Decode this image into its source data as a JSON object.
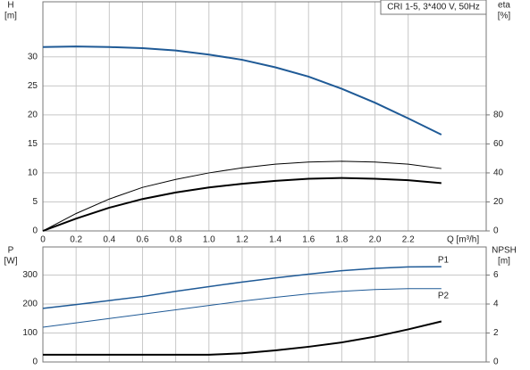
{
  "chart_data": [
    {
      "type": "line",
      "title": "CRI 1-5, 3*400 V, 50Hz",
      "ylabel": [
        "H",
        "[m]"
      ],
      "y2label": [
        "eta",
        "[%]"
      ],
      "xlabel": "Q [m³/h]",
      "x": [
        0,
        0.2,
        0.4,
        0.6,
        0.8,
        1.0,
        1.2,
        1.4,
        1.6,
        1.8,
        2.0,
        2.2,
        2.4
      ],
      "xlim": [
        0,
        2.67
      ],
      "xticks": [
        0,
        0.2,
        0.4,
        0.6,
        0.8,
        {
          "value": 1.0,
          "label": "1.0"
        },
        1.2,
        1.4,
        1.6,
        1.8,
        {
          "value": 2.0,
          "label": "2.0"
        },
        2.2
      ],
      "ylim": [
        0,
        39.5
      ],
      "yticks": [
        0,
        5,
        10,
        15,
        20,
        25,
        30
      ],
      "y2lim": [
        0,
        158
      ],
      "y2ticks": [
        0,
        20,
        40,
        60,
        80
      ],
      "grid": true,
      "series": [
        {
          "color": "#1f5a96",
          "line_width": 2,
          "values": [
            31.7,
            31.8,
            31.7,
            31.5,
            31.1,
            30.4,
            29.5,
            28.2,
            26.6,
            24.5,
            22.1,
            19.4,
            16.6
          ]
        },
        {
          "color": "#000000",
          "line_width": 1,
          "axis": "y2",
          "values": [
            0,
            12,
            22,
            30,
            35.5,
            40,
            43.5,
            46,
            47.5,
            48,
            47.5,
            46,
            43
          ]
        },
        {
          "color": "#000000",
          "line_width": 2,
          "axis": "y2",
          "values": [
            0,
            8.5,
            16,
            22,
            26.5,
            30,
            32.5,
            34.5,
            36,
            36.5,
            36,
            35,
            33
          ]
        }
      ]
    },
    {
      "type": "line",
      "ylabel": [
        "P",
        "[W]"
      ],
      "y2label": [
        "NPSH",
        "[m]"
      ],
      "x": [
        0,
        0.2,
        0.4,
        0.6,
        0.8,
        1.0,
        1.2,
        1.4,
        1.6,
        1.8,
        2.0,
        2.2,
        2.4
      ],
      "xlim": [
        0,
        2.67
      ],
      "xticks": [
        0,
        0.2,
        0.4,
        0.6,
        0.8,
        1.0,
        1.2,
        1.4,
        1.6,
        1.8,
        2.0,
        2.2
      ],
      "xtick_labels": false,
      "ylim": [
        0,
        397
      ],
      "yticks": [
        0,
        100,
        200,
        300
      ],
      "y2lim": [
        0,
        7.94
      ],
      "y2ticks": [
        0,
        2,
        4,
        6
      ],
      "grid": true,
      "series": [
        {
          "name": "P1",
          "color": "#1f5a96",
          "line_width": 1.5,
          "values": [
            185,
            198,
            212,
            226,
            244,
            260,
            276,
            290,
            303,
            315,
            323,
            328,
            329
          ]
        },
        {
          "name": "P2",
          "color": "#1f5a96",
          "line_width": 1,
          "values": [
            120,
            135,
            150,
            165,
            180,
            195,
            210,
            223,
            235,
            244,
            250,
            253,
            253
          ]
        },
        {
          "color": "#000000",
          "line_width": 2,
          "axis": "y2",
          "values": [
            0.5,
            0.5,
            0.5,
            0.5,
            0.5,
            0.5,
            0.6,
            0.8,
            1.05,
            1.35,
            1.75,
            2.25,
            2.8
          ]
        }
      ]
    }
  ]
}
